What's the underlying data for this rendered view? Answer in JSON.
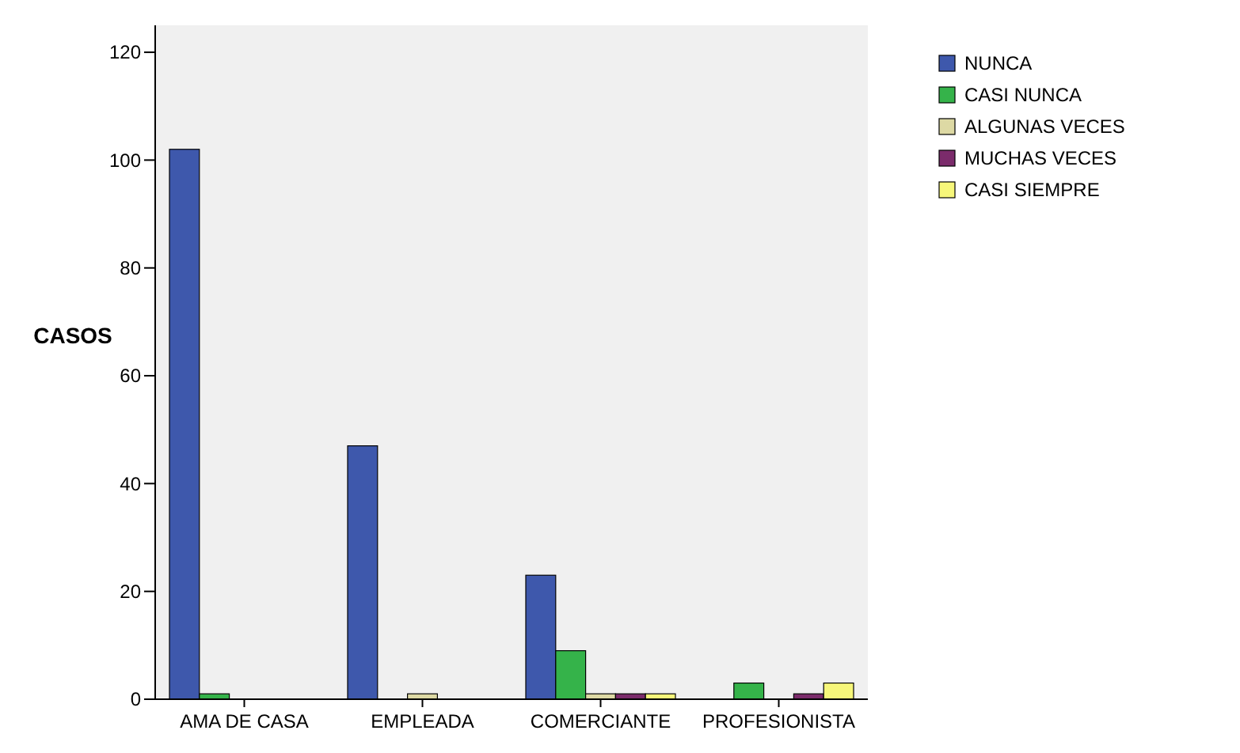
{
  "chart_data": {
    "type": "bar",
    "ylabel": "CASOS",
    "categories": [
      "AMA DE CASA",
      "EMPLEADA",
      "COMERCIANTE",
      "PROFESIONISTA"
    ],
    "series": [
      {
        "name": "NUNCA",
        "color": "#3e58ac",
        "values": [
          102,
          47,
          23,
          0
        ]
      },
      {
        "name": "CASI NUNCA",
        "color": "#35b34a",
        "values": [
          1,
          0,
          9,
          3
        ]
      },
      {
        "name": "ALGUNAS VECES",
        "color": "#ddd9a4",
        "values": [
          0,
          1,
          1,
          0
        ]
      },
      {
        "name": "MUCHAS VECES",
        "color": "#7b2b6b",
        "values": [
          0,
          0,
          1,
          1
        ]
      },
      {
        "name": "CASI SIEMPRE",
        "color": "#f7f77a",
        "values": [
          0,
          0,
          1,
          3
        ]
      }
    ],
    "ylim": [
      0,
      125
    ],
    "yticks": [
      0,
      20,
      40,
      60,
      80,
      100,
      120
    ],
    "grid": false,
    "legend": "right"
  }
}
